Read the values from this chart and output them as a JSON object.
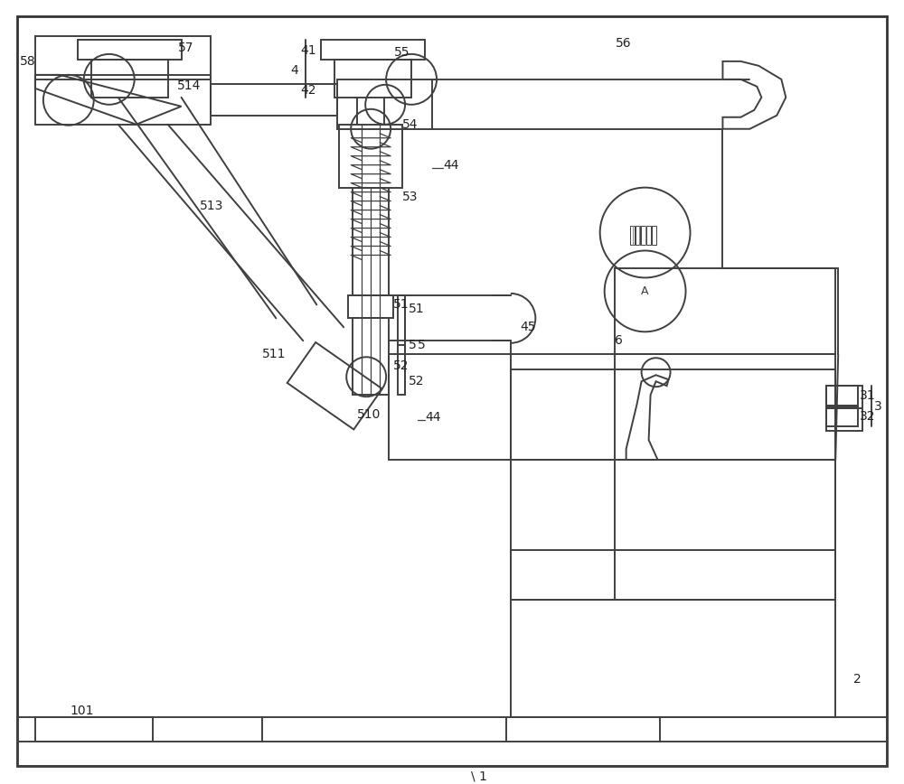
{
  "bg_color": "#ffffff",
  "lc": "#404040",
  "lw": 1.4,
  "tlw": 0.9,
  "fs": 10,
  "fc": "#222222",
  "figsize": [
    10.0,
    8.68
  ],
  "dpi": 100
}
